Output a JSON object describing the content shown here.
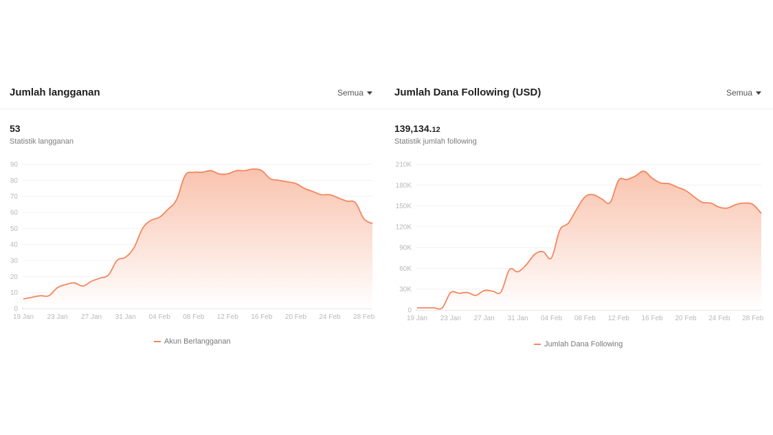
{
  "colors": {
    "line": "#f4855f",
    "fill_top": "#f8b9a0",
    "fill_bottom": "#ffffff",
    "grid": "#f0f0f0",
    "axis": "#cfcfcf",
    "tick_text": "#b8b8b8"
  },
  "panels": [
    {
      "title": "Jumlah langganan",
      "filter_label": "Semua",
      "stat_value_main": "53",
      "stat_value_decimal": "",
      "stat_label": "Statistik langganan"
    },
    {
      "title": "Jumlah Dana Following (USD)",
      "filter_label": "Semua",
      "stat_value_main": "139,134.",
      "stat_value_decimal": "12",
      "stat_label": "Statistik jumlah following"
    }
  ],
  "chart_data": [
    {
      "type": "area",
      "title": "Jumlah langganan",
      "x": [
        "19 Jan",
        "20 Jan",
        "21 Jan",
        "22 Jan",
        "23 Jan",
        "24 Jan",
        "25 Jan",
        "26 Jan",
        "27 Jan",
        "28 Jan",
        "29 Jan",
        "30 Jan",
        "31 Jan",
        "01 Feb",
        "02 Feb",
        "03 Feb",
        "04 Feb",
        "05 Feb",
        "06 Feb",
        "07 Feb",
        "08 Feb",
        "09 Feb",
        "10 Feb",
        "11 Feb",
        "12 Feb",
        "13 Feb",
        "14 Feb",
        "15 Feb",
        "16 Feb",
        "17 Feb",
        "18 Feb",
        "19 Feb",
        "20 Feb",
        "21 Feb",
        "22 Feb",
        "23 Feb",
        "24 Feb",
        "25 Feb",
        "26 Feb",
        "27 Feb",
        "28 Feb",
        "29 Feb"
      ],
      "xticks": [
        "19 Jan",
        "23 Jan",
        "27 Jan",
        "31 Jan",
        "04 Feb",
        "08 Feb",
        "12 Feb",
        "16 Feb",
        "20 Feb",
        "24 Feb",
        "28 Feb"
      ],
      "series": [
        {
          "name": "Akun Berlangganan",
          "values": [
            6,
            7,
            8,
            8,
            13,
            15,
            16,
            14,
            17,
            19,
            21,
            30,
            32,
            38,
            50,
            55,
            57,
            62,
            68,
            83,
            85,
            85,
            86,
            84,
            84,
            86,
            86,
            87,
            86,
            81,
            80,
            79,
            78,
            75,
            73,
            71,
            71,
            69,
            67,
            66,
            56,
            53
          ]
        }
      ],
      "ylim": [
        0,
        90
      ],
      "yticks": [
        0,
        10,
        20,
        30,
        40,
        50,
        60,
        70,
        80,
        90
      ],
      "ytick_labels": [
        "0",
        "10",
        "20",
        "30",
        "40",
        "50",
        "60",
        "70",
        "80",
        "90"
      ],
      "grid": true,
      "legend": "bottom-center"
    },
    {
      "type": "area",
      "title": "Jumlah Dana Following (USD)",
      "x": [
        "19 Jan",
        "20 Jan",
        "21 Jan",
        "22 Jan",
        "23 Jan",
        "24 Jan",
        "25 Jan",
        "26 Jan",
        "27 Jan",
        "28 Jan",
        "29 Jan",
        "30 Jan",
        "31 Jan",
        "01 Feb",
        "02 Feb",
        "03 Feb",
        "04 Feb",
        "05 Feb",
        "06 Feb",
        "07 Feb",
        "08 Feb",
        "09 Feb",
        "10 Feb",
        "11 Feb",
        "12 Feb",
        "13 Feb",
        "14 Feb",
        "15 Feb",
        "16 Feb",
        "17 Feb",
        "18 Feb",
        "19 Feb",
        "20 Feb",
        "21 Feb",
        "22 Feb",
        "23 Feb",
        "24 Feb",
        "25 Feb",
        "26 Feb",
        "27 Feb",
        "28 Feb",
        "29 Feb"
      ],
      "xticks": [
        "19 Jan",
        "23 Jan",
        "27 Jan",
        "31 Jan",
        "04 Feb",
        "08 Feb",
        "12 Feb",
        "16 Feb",
        "20 Feb",
        "24 Feb",
        "28 Feb"
      ],
      "series": [
        {
          "name": "Jumlah Dana Following",
          "values": [
            3000,
            3000,
            3000,
            3000,
            25000,
            24000,
            25000,
            21000,
            28000,
            27000,
            26000,
            58000,
            55000,
            65000,
            80000,
            84000,
            75000,
            115000,
            125000,
            145000,
            163000,
            166000,
            160000,
            155000,
            187000,
            188000,
            193000,
            200000,
            190000,
            183000,
            182000,
            177000,
            172000,
            163000,
            155000,
            154000,
            148000,
            147000,
            152000,
            154000,
            152000,
            139000
          ]
        }
      ],
      "ylim": [
        0,
        210000
      ],
      "yticks": [
        0,
        30000,
        60000,
        90000,
        120000,
        150000,
        180000,
        210000
      ],
      "ytick_labels": [
        "0",
        "30K",
        "60K",
        "90K",
        "120K",
        "150K",
        "180K",
        "210K"
      ],
      "grid": true,
      "legend": "bottom-center"
    }
  ]
}
